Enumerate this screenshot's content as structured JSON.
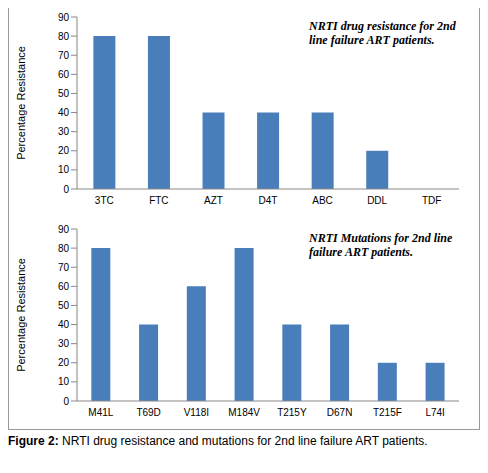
{
  "chart_data": [
    {
      "type": "bar",
      "title": "NRTI drug resistance for 2nd line failure ART patients.",
      "y_label": "Percentage Resistance",
      "categories": [
        "3TC",
        "FTC",
        "AZT",
        "D4T",
        "ABC",
        "DDL",
        "TDF"
      ],
      "values": [
        80,
        80,
        40,
        40,
        40,
        20,
        0
      ],
      "color": "#4a7ebb",
      "ylim": [
        0,
        90
      ],
      "yticks": [
        0,
        10,
        20,
        30,
        40,
        50,
        60,
        70,
        80,
        90
      ],
      "grid": false
    },
    {
      "type": "bar",
      "title": "NRTI Mutations for 2nd line failure ART patients.",
      "y_label": "Percentage Resistance",
      "categories": [
        "M41L",
        "T69D",
        "V118I",
        "M184V",
        "T215Y",
        "D67N",
        "T215F",
        "L74I"
      ],
      "values": [
        80,
        40,
        60,
        80,
        40,
        40,
        20,
        20
      ],
      "color": "#4a7ebb",
      "ylim": [
        0,
        90
      ],
      "yticks": [
        0,
        10,
        20,
        30,
        40,
        50,
        60,
        70,
        80,
        90
      ],
      "grid": false
    }
  ],
  "caption": {
    "label": "Figure 2:",
    "text": "NRTI drug resistance and mutations for 2nd line failure ART patients."
  }
}
